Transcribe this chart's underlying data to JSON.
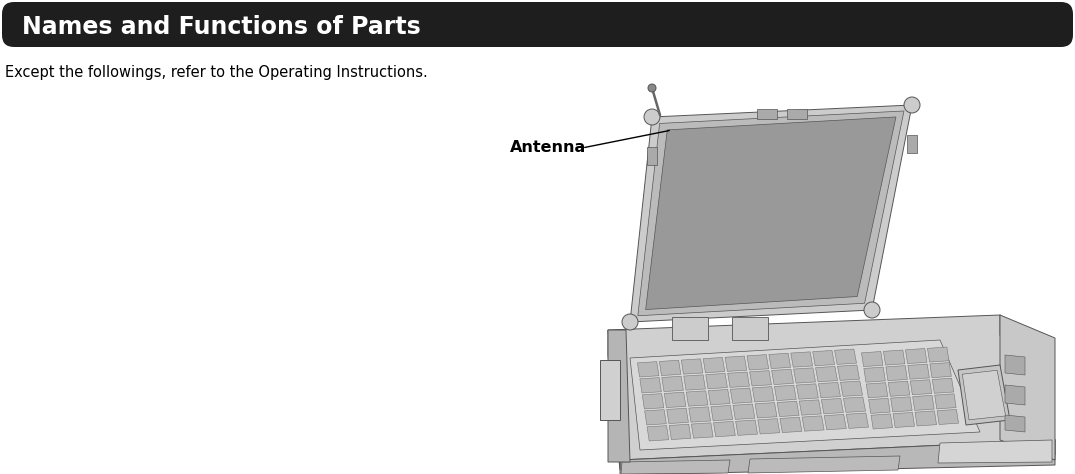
{
  "title": "Names and Functions of Parts",
  "subtitle": "Except the followings, refer to the Operating Instructions.",
  "antenna_label": "Antenna",
  "title_bg_color": "#1e1e1e",
  "title_text_color": "#ffffff",
  "subtitle_text_color": "#000000",
  "bg_color": "#ffffff",
  "title_fontsize": 17,
  "subtitle_fontsize": 10.5,
  "annotation_fontsize": 11.5,
  "fig_width": 10.75,
  "fig_height": 4.74,
  "c_frame": "#cccccc",
  "c_frame_dark": "#aaaaaa",
  "c_frame_mid": "#bbbbbb",
  "c_screen": "#999999",
  "c_base_top": "#d0d0d0",
  "c_base_side": "#b8b8b8",
  "c_base_dark": "#a0a0a0",
  "c_key": "#b0b0b0",
  "c_outline": "#555555",
  "c_hinge": "#cccccc",
  "c_touchpad": "#c8c8c8"
}
